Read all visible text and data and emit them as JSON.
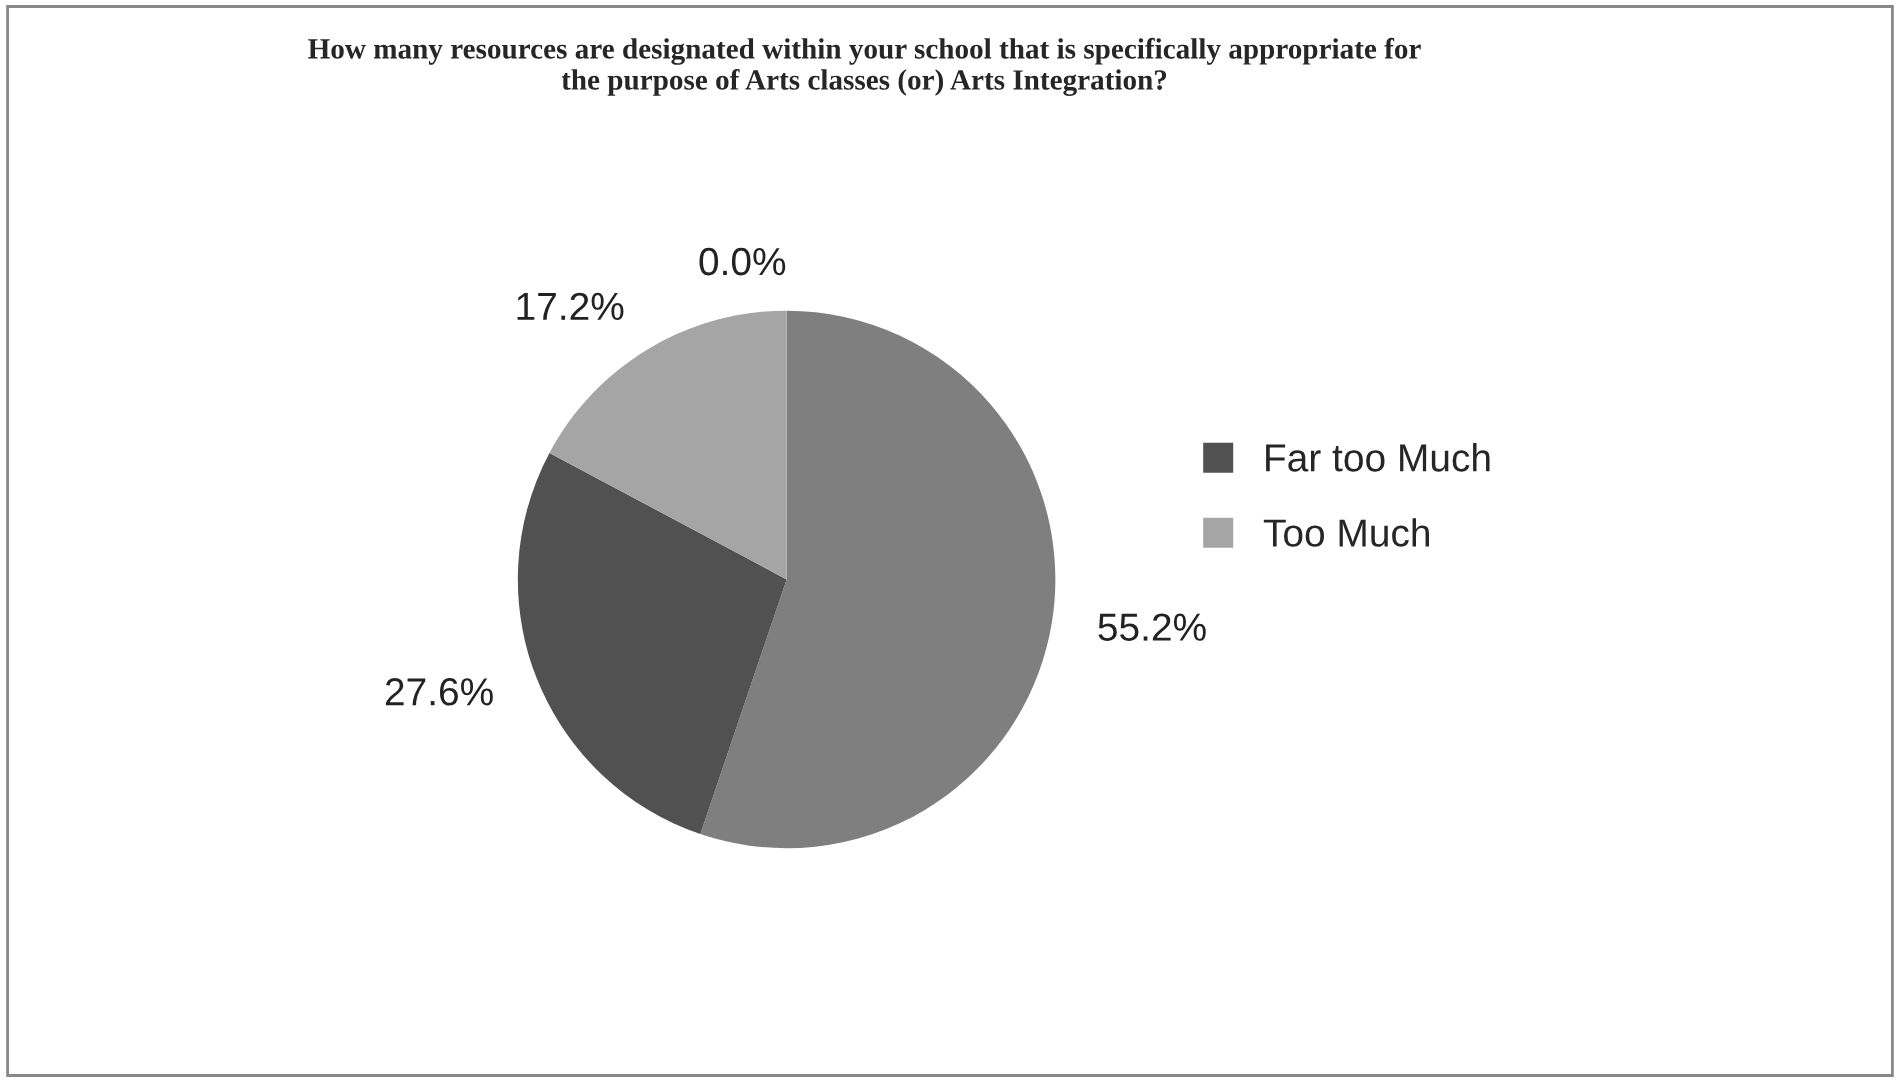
{
  "chart_data": {
    "type": "pie",
    "title": "How many resources are designated within your school that is specifically appropriate for the purpose of Arts classes (or) Arts Integration?",
    "categories": [
      null,
      null,
      "Far too Much",
      "Too Much"
    ],
    "values": [
      0.0,
      55.2,
      27.6,
      17.2
    ],
    "colors": [
      "#3f3f3f",
      "#7f7f7f",
      "#515151",
      "#a5a5a5"
    ],
    "value_labels": [
      "0.0%",
      "55.2%",
      "27.6%",
      "17.2%"
    ],
    "legend": "right"
  }
}
